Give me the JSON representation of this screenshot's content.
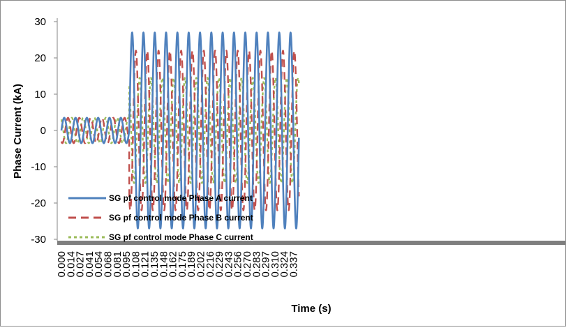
{
  "chart_data": {
    "type": "line",
    "title": "",
    "xlabel": "Time (s)",
    "ylabel": "Phase Current (kA)",
    "xlim": [
      0,
      0.3418
    ],
    "ylim": [
      -30,
      30
    ],
    "y_ticks": [
      "-30",
      "-20",
      "-10",
      "0",
      "10",
      "20",
      "30"
    ],
    "x_tick_labels": [
      "0.000",
      "0.014",
      "0.027",
      "0.041",
      "0.054",
      "0.068",
      "0.081",
      "0.095",
      "0.108",
      "0.121",
      "0.135",
      "0.148",
      "0.162",
      "0.175",
      "0.189",
      "0.202",
      "0.216",
      "0.229",
      "0.243",
      "0.256",
      "0.270",
      "0.283",
      "0.297",
      "0.310",
      "0.324",
      "0.337"
    ],
    "grid": false,
    "legend_position": "bottom-left",
    "fault_time": 0.1,
    "frequency_hz": 60,
    "series": [
      {
        "name": "SG pf control mode Phase A current",
        "color": "#4f81bd",
        "dash": "solid",
        "pre_amplitude": 3.5,
        "post_amplitude": 27,
        "pre_offset": 0,
        "post_offset": 0,
        "phase_deg": 0
      },
      {
        "name": "SG pf control mode Phase B current",
        "color": "#c0504d",
        "dash": "dashed",
        "pre_amplitude": 3.5,
        "post_amplitude": 22,
        "pre_offset": 0,
        "post_offset": 0,
        "phase_deg": -120
      },
      {
        "name": "SG pf control mode Phase C current",
        "color": "#9bbb59",
        "dash": "dotted",
        "pre_amplitude": 3.5,
        "post_amplitude": 14.5,
        "pre_offset": 0,
        "post_offset": 0,
        "phase_deg": 120
      }
    ]
  }
}
